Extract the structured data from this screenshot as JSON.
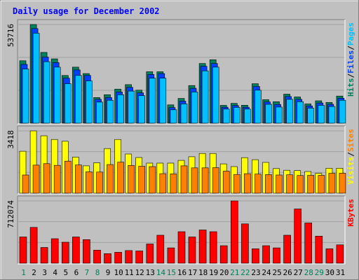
{
  "colors": {
    "background": "#c0c0c0",
    "panel": "#c0c0c0",
    "frame_light": "#ffffff",
    "frame_dark": "#808080",
    "grid": "#a0a0a0",
    "title": "#0000ff",
    "hits": "#00805c",
    "files": "#0040ff",
    "pages": "#00c0ff",
    "visits": "#ffff00",
    "sites": "#ff8000",
    "kbytes": "#ff0000",
    "day_weekday": "#000000",
    "day_weekend": "#00805c",
    "legend_sep": "#000000"
  },
  "chart_data": {
    "type": "bar",
    "title": "Daily usage for December 2002",
    "categories": [
      "1",
      "2",
      "3",
      "4",
      "5",
      "6",
      "7",
      "8",
      "9",
      "10",
      "11",
      "12",
      "13",
      "14",
      "15",
      "16",
      "17",
      "18",
      "19",
      "20",
      "21",
      "22",
      "23",
      "24",
      "25",
      "26",
      "27",
      "28",
      "29",
      "30",
      "31"
    ],
    "weekend_days": [
      "1",
      "7",
      "8",
      "14",
      "15",
      "21",
      "22",
      "28",
      "29"
    ],
    "panels": [
      {
        "name": "hits-files-pages",
        "max_label": "53716",
        "ylim": [
          0,
          53716
        ],
        "legend": [
          {
            "text": "Hits",
            "series": "Hits"
          },
          {
            "text": "/",
            "series": null
          },
          {
            "text": "Files",
            "series": "Files"
          },
          {
            "text": "/",
            "series": null
          },
          {
            "text": "Pages",
            "series": "Pages"
          }
        ],
        "series": [
          {
            "name": "Hits",
            "color": "#00805c",
            "values": [
              34000,
              53716,
              38500,
              35000,
              26000,
              30500,
              27000,
              14000,
              15500,
              18500,
              21000,
              18000,
              28000,
              28000,
              10000,
              13500,
              20500,
              32500,
              34500,
              9700,
              10800,
              9800,
              21500,
              12800,
              11700,
              15800,
              14300,
              10500,
              12200,
              11300,
              14800
            ]
          },
          {
            "name": "Files",
            "color": "#0040ff",
            "values": [
              32000,
              51500,
              36000,
              33000,
              24500,
              29000,
              26000,
              13000,
              14000,
              17000,
              19500,
              16500,
              26500,
              27000,
              8500,
              12000,
              19000,
              31000,
              32500,
              8700,
              9600,
              8700,
              20000,
              11600,
              10200,
              14500,
              13000,
              9400,
              11000,
              10300,
              13600
            ]
          },
          {
            "name": "Pages",
            "color": "#00c0ff",
            "values": [
              29500,
              49000,
              33500,
              30500,
              21500,
              26000,
              23000,
              11500,
              12500,
              15500,
              17500,
              15000,
              24500,
              24500,
              7300,
              10500,
              17000,
              28500,
              30500,
              7700,
              8600,
              7700,
              18000,
              10300,
              8800,
              13000,
              11700,
              8200,
              9700,
              9100,
              12500
            ]
          }
        ]
      },
      {
        "name": "visits-sites",
        "max_label": "3418",
        "ylim": [
          0,
          3418
        ],
        "legend": [
          {
            "text": "Visits",
            "series": "Visits"
          },
          {
            "text": "/",
            "series": null
          },
          {
            "text": "Sites",
            "series": "Sites"
          }
        ],
        "series": [
          {
            "name": "Visits",
            "color": "#ffff00",
            "values": [
              2300,
              3418,
              3150,
              2950,
              2850,
              1980,
              1500,
              1670,
              2450,
              2950,
              2150,
              1960,
              1650,
              1650,
              1650,
              1800,
              2000,
              2180,
              2180,
              1610,
              1460,
              1950,
              1840,
              1690,
              1350,
              1260,
              1240,
              1190,
              1090,
              1370,
              1370
            ]
          },
          {
            "name": "Sites",
            "color": "#ff8000",
            "values": [
              1000,
              1540,
              1620,
              1530,
              1760,
              1550,
              1170,
              1160,
              1570,
              1700,
              1520,
              1480,
              1460,
              1070,
              1060,
              1500,
              1390,
              1390,
              1400,
              1210,
              1030,
              1070,
              1050,
              1020,
              1000,
              1010,
              970,
              980,
              980,
              1090,
              1100
            ]
          }
        ]
      },
      {
        "name": "kbytes",
        "max_label": "712074",
        "ylim": [
          0,
          712074
        ],
        "legend": [
          {
            "text": "KBytes",
            "series": "KBytes"
          }
        ],
        "series": [
          {
            "name": "KBytes",
            "color": "#ff0000",
            "values": [
              300000,
              410000,
              180000,
              280000,
              240000,
              300000,
              270000,
              150000,
              110000,
              125000,
              145000,
              140000,
              220000,
              320000,
              175000,
              360000,
              300000,
              380000,
              360000,
              200000,
              712000,
              450000,
              165000,
              200000,
              175000,
              320000,
              620000,
              460000,
              310000,
              165000,
              210000
            ]
          }
        ]
      }
    ]
  }
}
